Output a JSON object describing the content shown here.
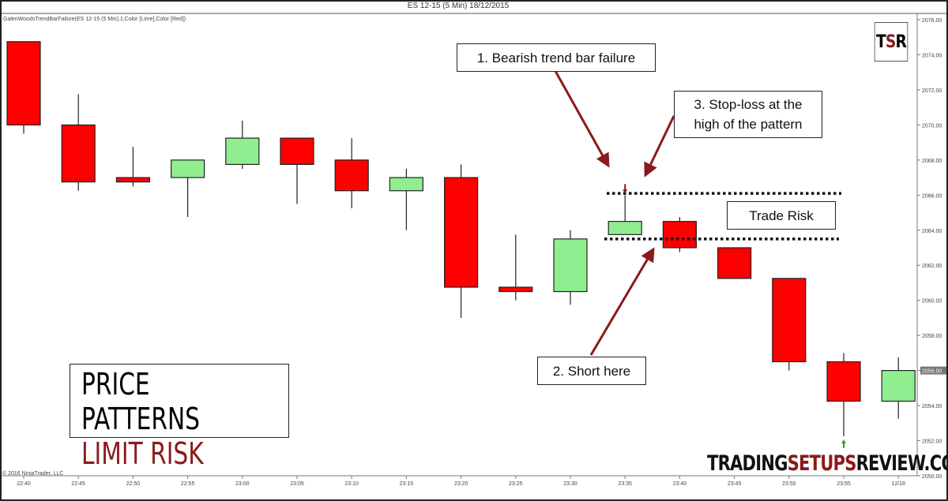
{
  "header": {
    "title": "ES 12-15 (5 Min)  18/12/2015",
    "indicator": "GalenWoodsTrendBarFailure(ES 12-15 (5 Min),1,Color [Lime],Color [Red])",
    "copyright": "© 2016 NinjaTrader, LLC"
  },
  "logo": {
    "t": "T",
    "s": "S",
    "r": "R"
  },
  "banner": {
    "line1": "PRICE PATTERNS",
    "line2": "LIMIT RISK"
  },
  "site": {
    "part1": "TRADING",
    "part2": "SETUPS",
    "part3": "REVIEW.COM"
  },
  "annotations": {
    "a1": "1. Bearish trend bar failure",
    "a2": "2. Short here",
    "a3_line1": "3. Stop-loss at the",
    "a3_line2": "high  of the pattern",
    "risk": "Trade Risk"
  },
  "colors": {
    "bull": "#90ee90",
    "bear": "#ff0000",
    "annotation": "#8b1a1a",
    "signal_up": "#2e9e2e"
  },
  "chart_data": {
    "type": "candlestick",
    "title": "ES 12-15 (5 Min)  18/12/2015",
    "categories": [
      "22:40",
      "22:45",
      "22:50",
      "22:55",
      "23:00",
      "23:05",
      "23:10",
      "23:15",
      "23:20",
      "23:25",
      "23:30",
      "23:35",
      "23:40",
      "23:45",
      "23:50",
      "23:55",
      "12/18"
    ],
    "open": [
      2074.75,
      2070.0,
      2067.0,
      2067.0,
      2067.75,
      2069.25,
      2068.0,
      2066.25,
      2067.0,
      2060.75,
      2060.5,
      2063.75,
      2064.5,
      2063.0,
      2061.25,
      2056.5,
      2054.25
    ],
    "high": [
      2074.75,
      2071.75,
      2068.75,
      2068.0,
      2070.25,
      2069.25,
      2069.25,
      2067.5,
      2067.75,
      2063.75,
      2064.0,
      2066.0,
      2064.75,
      2063.0,
      2061.25,
      2057.0,
      2056.75
    ],
    "low": [
      2069.5,
      2066.25,
      2066.5,
      2064.75,
      2067.5,
      2065.5,
      2065.25,
      2064.0,
      2059.0,
      2060.0,
      2059.75,
      2063.75,
      2062.75,
      2061.25,
      2056.0,
      2052.25,
      2053.25
    ],
    "close": [
      2070.0,
      2066.75,
      2066.75,
      2068.0,
      2069.25,
      2067.75,
      2066.25,
      2067.0,
      2060.75,
      2060.5,
      2063.5,
      2064.5,
      2063.0,
      2061.25,
      2056.5,
      2054.25,
      2056.0
    ],
    "yticks": [
      "2076.00",
      "2074.00",
      "2072.00",
      "2070.00",
      "2068.00",
      "2066.00",
      "2064.00",
      "2062.00",
      "2060.00",
      "2058.00",
      "2056.00",
      "2054.00",
      "2052.00",
      "2050.00"
    ],
    "ylim": [
      2050,
      2076
    ],
    "last_price": "2056.00",
    "levels": {
      "stop": 2066.1,
      "entry": 2063.5
    },
    "signals": [
      {
        "index": 11,
        "direction": "down"
      },
      {
        "index": 15,
        "direction": "up"
      }
    ],
    "grid": false
  }
}
